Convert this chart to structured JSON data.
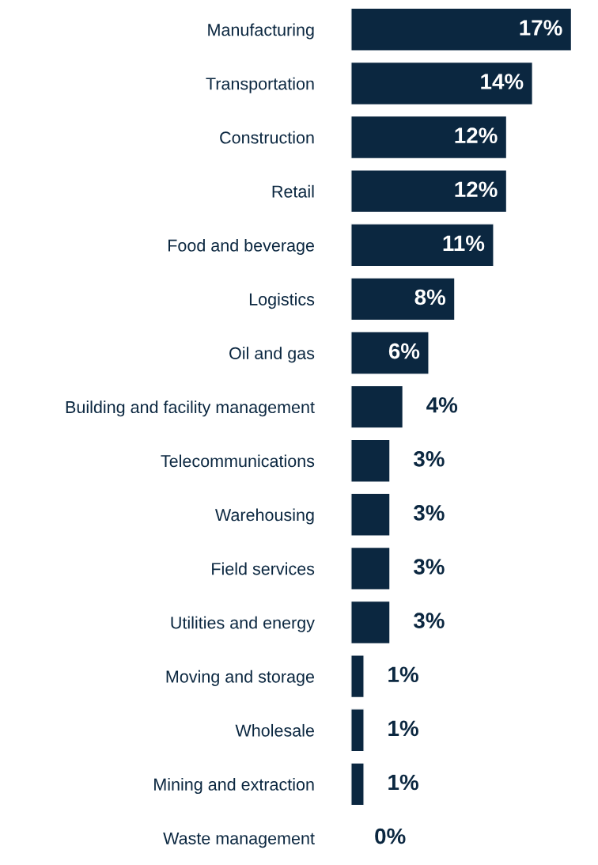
{
  "chart_data": {
    "type": "bar",
    "orientation": "horizontal",
    "categories": [
      "Manufacturing",
      "Transportation",
      "Construction",
      "Retail",
      "Food and beverage",
      "Logistics",
      "Oil and gas",
      "Building and facility management",
      "Telecommunications",
      "Warehousing",
      "Field services",
      "Utilities and energy",
      "Moving and storage",
      "Wholesale",
      "Mining and extraction",
      "Waste management"
    ],
    "values": [
      17,
      14,
      12,
      12,
      11,
      8,
      6,
      4,
      3,
      3,
      3,
      3,
      1,
      1,
      1,
      0
    ],
    "value_labels": [
      "17%",
      "14%",
      "12%",
      "12%",
      "11%",
      "8%",
      "6%",
      "4%",
      "3%",
      "3%",
      "3%",
      "3%",
      "1%",
      "1%",
      "1%",
      "0%"
    ],
    "color": "#0b2740",
    "tick_labels": "y",
    "grid": false,
    "legend": false
  }
}
